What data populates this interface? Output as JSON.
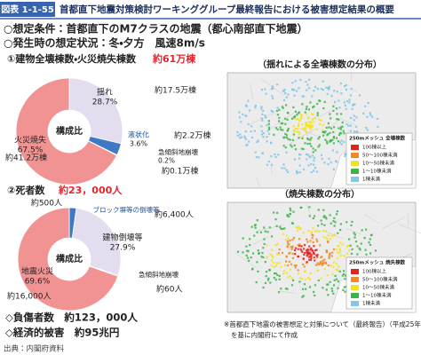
{
  "header": {
    "badge": "図表 1-1-55",
    "title": "首都直下地震対策検討ワーキンググループ最終報告における被害想定結果の概要"
  },
  "conditions": [
    "○想定条件：首都直下のM7クラスの地震（都心南部直下地震）",
    "○発生時の想定状況：冬・夕方　風速8m/s"
  ],
  "chart_data": [
    {
      "type": "pie",
      "title": "①建物全壊棟数・火災焼失棟数",
      "total": "約61万棟",
      "center_label": "構成比",
      "categories": [
        "揺れ",
        "液状化",
        "急傾斜地崩壊",
        "火災焼失"
      ],
      "values": [
        28.7,
        3.6,
        0.2,
        67.5
      ],
      "value_labels": [
        "28.7%",
        "3.6%",
        "0.2%",
        "67.5%"
      ],
      "counts": [
        "約17.5万棟",
        "約2.2万棟",
        "約0.1万棟",
        "約41.2万棟"
      ],
      "colors": [
        "#e4ddf0",
        "#3f78c4",
        "#39a04a",
        "#f29393"
      ]
    },
    {
      "type": "pie",
      "title": "②死者数",
      "total": "約23，000人",
      "center_label": "構成比",
      "categories": [
        "ブロック塀等の倒壊等",
        "建物倒壊等",
        "急傾斜地崩壊",
        "地震火災"
      ],
      "values": [
        2.2,
        27.9,
        0.3,
        69.6
      ],
      "value_labels": [
        null,
        "27.9%",
        null,
        "69.6%"
      ],
      "counts": [
        "約500人",
        "約6,400人",
        "約60人",
        "約16,000人"
      ],
      "colors": [
        "#3f78c4",
        "#e4ddf0",
        "#39a04a",
        "#f29393"
      ]
    }
  ],
  "summary": [
    "◇負傷者数　約123，000人",
    "◇経済的被害　約95兆円"
  ],
  "source": "出典：内閣府資料",
  "maps": [
    {
      "title": "（揺れによる全壊棟数の分布）",
      "legend_title": "250mメッシュ 全壊棟数",
      "legend": [
        "100棟以上",
        "50～100棟未満",
        "10～50棟未満",
        "1～10棟未満",
        "1棟未満"
      ]
    },
    {
      "title": "（焼失棟数の分布）",
      "legend_title": "250mメッシュ 焼失棟数",
      "legend": [
        "100棟以上",
        "50～100棟未満",
        "10～50棟未満",
        "1～10棟未満",
        "1棟未満"
      ]
    }
  ],
  "footnote": [
    "※首都直下地震の被害想定と対策について（最終報告）（平成25年12月）",
    "を基に内閣府にて作成"
  ]
}
